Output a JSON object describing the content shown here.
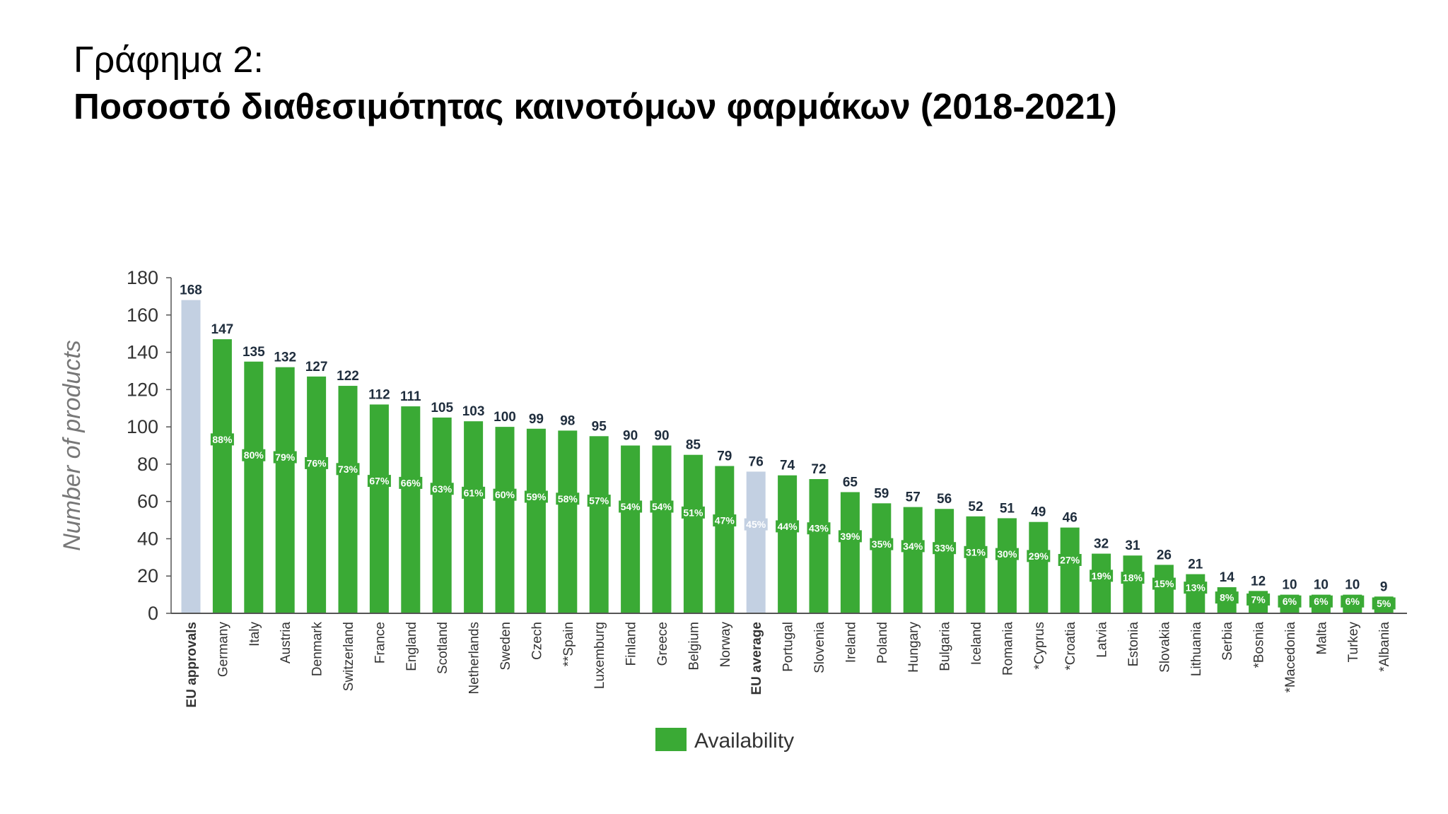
{
  "heading": {
    "line1": "Γράφημα 2:",
    "line2": "Ποσοστό διαθεσιμότητας καινοτόμων φαρμάκων (2018-2021)"
  },
  "colors": {
    "availability": "#3aaa35",
    "reference": "#c3d0e2",
    "axis": "#555555"
  },
  "chart_data": {
    "type": "bar",
    "ylabel": "Number of products",
    "ylim": [
      0,
      180
    ],
    "yticks": [
      0,
      20,
      40,
      60,
      80,
      100,
      120,
      140,
      160,
      180
    ],
    "grid": false,
    "legend": {
      "position": "bottom-center",
      "entries": [
        "Availability"
      ]
    },
    "bold_categories": [
      "EU approvals",
      "EU average"
    ],
    "reference_categories": [
      "EU approvals",
      "EU average"
    ],
    "categories": [
      "EU approvals",
      "Germany",
      "Italy",
      "Austria",
      "Denmark",
      "Switzerland",
      "France",
      "England",
      "Scotland",
      "Netherlands",
      "Sweden",
      "Czech",
      "**Spain",
      "Luxemburg",
      "Finland",
      "Greece",
      "Belgium",
      "Norway",
      "EU average",
      "Portugal",
      "Slovenia",
      "Ireland",
      "Poland",
      "Hungary",
      "Bulgaria",
      "Iceland",
      "Romania",
      "*Cyprus",
      "*Croatia",
      "Latvia",
      "Estonia",
      "Slovakia",
      "Lithuania",
      "Serbia",
      "*Bosnia",
      "*Macedonia",
      "Malta",
      "Turkey",
      "*Albania"
    ],
    "values": [
      168,
      147,
      135,
      132,
      127,
      122,
      112,
      111,
      105,
      103,
      100,
      99,
      98,
      95,
      90,
      90,
      85,
      79,
      76,
      74,
      72,
      65,
      59,
      57,
      56,
      52,
      51,
      49,
      46,
      32,
      31,
      26,
      21,
      14,
      12,
      10,
      10,
      10,
      9
    ],
    "value_labels": [
      "168",
      "147",
      "135",
      "132",
      "127",
      "122",
      "112",
      "111",
      "105",
      "103",
      "100",
      "99",
      "98",
      "95",
      "90",
      "90",
      "85",
      "79",
      "76",
      "74",
      "72",
      "65",
      "59",
      "57",
      "56",
      "52",
      "51",
      "49",
      "46",
      "32",
      "31",
      "26",
      "21",
      "14",
      "12",
      "10",
      "10",
      "10",
      "9"
    ],
    "percentages": [
      null,
      88,
      80,
      79,
      76,
      73,
      67,
      66,
      63,
      61,
      60,
      59,
      58,
      57,
      54,
      54,
      51,
      47,
      45,
      44,
      43,
      39,
      35,
      34,
      33,
      31,
      30,
      29,
      27,
      19,
      18,
      15,
      13,
      8,
      7,
      6,
      6,
      6,
      5
    ],
    "percentage_labels": [
      "",
      "88%",
      "80%",
      "79%",
      "76%",
      "73%",
      "67%",
      "66%",
      "63%",
      "61%",
      "60%",
      "59%",
      "58%",
      "57%",
      "54%",
      "54%",
      "51%",
      "47%",
      "45%",
      "44%",
      "43%",
      "39%",
      "35%",
      "34%",
      "33%",
      "31%",
      "30%",
      "29%",
      "27%",
      "19%",
      "18%",
      "15%",
      "13%",
      "8%",
      "7%",
      "6%",
      "6%",
      "6%",
      "5%"
    ]
  }
}
